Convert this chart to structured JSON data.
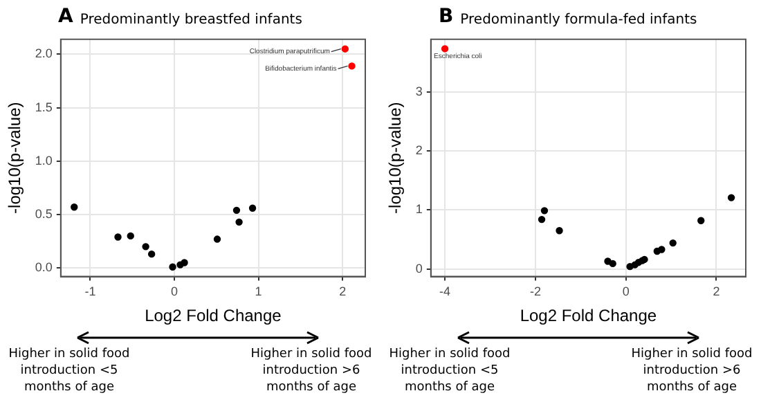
{
  "chart_data": [
    {
      "type": "scatter",
      "title": "Predominantly breastfed infants",
      "xlabel": "Log2 Fold Change",
      "ylabel": "-log10(p-value)",
      "xlim": [
        -1.35,
        2.27
      ],
      "xticks": [
        -1,
        0,
        1,
        2
      ],
      "ylim": [
        -0.08,
        2.14
      ],
      "yticks": [
        {
          "value": 0,
          "label": "0.0"
        },
        {
          "value": 0.5,
          "label": "0.5"
        },
        {
          "value": 1,
          "label": "1.0"
        },
        {
          "value": 1.5,
          "label": "1.5"
        },
        {
          "value": 2,
          "label": "2.0"
        }
      ],
      "grid": true,
      "legend": false,
      "marker": "circle",
      "series": [
        {
          "color": "#000000",
          "x": [
            -1.19,
            -0.67,
            -0.52,
            -0.34,
            -0.27,
            -0.02,
            0.07,
            0.12,
            0.51,
            0.74,
            0.77,
            0.93
          ],
          "values": [
            0.57,
            0.29,
            0.3,
            0.2,
            0.13,
            0.01,
            0.03,
            0.05,
            0.27,
            0.54,
            0.43,
            0.56
          ]
        },
        {
          "color": "#ff0000",
          "x": [
            2.03,
            2.11
          ],
          "values": [
            2.05,
            1.89
          ]
        }
      ],
      "annotations": [
        "A",
        "Higher in solid food introduction <5 months of age",
        "Higher in solid food introduction >6 months of age",
        {
          "text": "Clostridium paraputrificum",
          "x": 2.03,
          "y": 2.05
        },
        {
          "text": "Bifidobacterium infantis",
          "x": 2.11,
          "y": 1.89
        }
      ]
    },
    {
      "type": "scatter",
      "title": "Predominantly formula-fed infants",
      "xlabel": "Log2 Fold Change",
      "ylabel": "-log10(p-value)",
      "xlim": [
        -4.31,
        2.65
      ],
      "xticks": [
        -4,
        -2,
        0,
        2
      ],
      "ylim": [
        -0.13,
        3.9
      ],
      "yticks": [
        0,
        1,
        2,
        3
      ],
      "grid": true,
      "legend": false,
      "marker": "circle",
      "series": [
        {
          "color": "#000000",
          "x": [
            -1.86,
            -1.8,
            -1.47,
            -0.4,
            -0.29,
            0.09,
            0.2,
            0.28,
            0.36,
            0.41,
            0.69,
            0.79,
            1.04,
            1.66,
            2.33
          ],
          "values": [
            0.84,
            0.99,
            0.65,
            0.13,
            0.09,
            0.04,
            0.07,
            0.11,
            0.14,
            0.16,
            0.3,
            0.33,
            0.44,
            0.82,
            1.21
          ]
        },
        {
          "color": "#ff0000",
          "x": [
            -4.0
          ],
          "values": [
            3.74
          ]
        }
      ],
      "annotations": [
        "B",
        "Higher in solid food introduction <5 months of age",
        "Higher in solid food introduction >6 months of age",
        {
          "text": "Escherichia coli",
          "x": -4.0,
          "y": 3.74
        }
      ]
    }
  ]
}
